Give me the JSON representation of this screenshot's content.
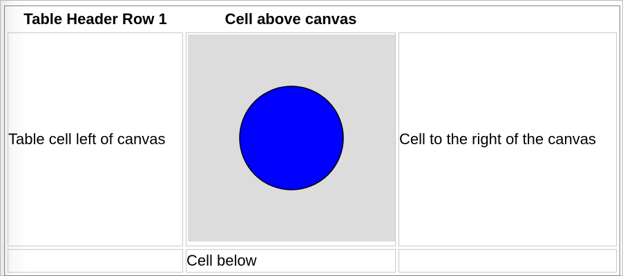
{
  "table": {
    "header": {
      "col1": "Table Header Row 1",
      "col2": "Cell above canvas",
      "col3": ""
    },
    "row": {
      "left": "Table cell left of canvas",
      "right": "Cell to the right of the canvas"
    },
    "footer": {
      "left": "",
      "middle": "Cell below",
      "right": ""
    }
  },
  "canvas": {
    "background_color": "#dcdcdc",
    "shape": "circle",
    "fill_color": "#0000ff",
    "stroke_color": "#000000"
  }
}
